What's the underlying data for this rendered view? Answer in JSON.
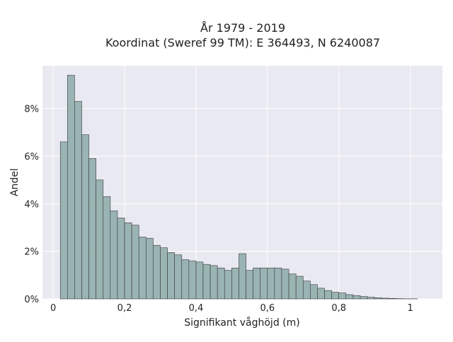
{
  "chart_data": {
    "type": "bar",
    "title_line1": "År 1979 - 2019",
    "title_line2": "Koordinat (Sweref 99 TM): E 364493, N 6240087",
    "xlabel": "Signifikant våghöjd (m)",
    "ylabel": "Andel",
    "xlim": [
      -0.03,
      1.09
    ],
    "ylim": [
      0,
      0.098
    ],
    "xticks": [
      {
        "value": 0,
        "label": "0"
      },
      {
        "value": 0.2,
        "label": "0,2"
      },
      {
        "value": 0.4,
        "label": "0,4"
      },
      {
        "value": 0.6,
        "label": "0,6"
      },
      {
        "value": 0.8,
        "label": "0,8"
      },
      {
        "value": 1,
        "label": "1"
      }
    ],
    "yticks": [
      {
        "value": 0,
        "label": "0%"
      },
      {
        "value": 0.02,
        "label": "2%"
      },
      {
        "value": 0.04,
        "label": "4%"
      },
      {
        "value": 0.06,
        "label": "6%"
      },
      {
        "value": 0.08,
        "label": "8%"
      }
    ],
    "bin_start": 0.02,
    "bin_width": 0.02,
    "values": [
      0.066,
      0.094,
      0.083,
      0.069,
      0.059,
      0.05,
      0.043,
      0.037,
      0.034,
      0.032,
      0.031,
      0.026,
      0.0255,
      0.0225,
      0.0215,
      0.0195,
      0.0185,
      0.0165,
      0.016,
      0.0155,
      0.0145,
      0.014,
      0.013,
      0.012,
      0.013,
      0.019,
      0.012,
      0.013,
      0.013,
      0.013,
      0.013,
      0.0125,
      0.0105,
      0.0095,
      0.0075,
      0.006,
      0.0045,
      0.0035,
      0.0028,
      0.0025,
      0.0018,
      0.0014,
      0.001,
      0.0007,
      0.0005,
      0.0003,
      0.0002,
      0.0001,
      5e-05,
      5e-05
    ],
    "grid": true,
    "legend": "none",
    "colors": {
      "bar_fill": "#9ab3b3",
      "bar_stroke": "#3a3a3a",
      "plot_bg": "#e9e9f2",
      "grid": "#ffffff"
    }
  }
}
